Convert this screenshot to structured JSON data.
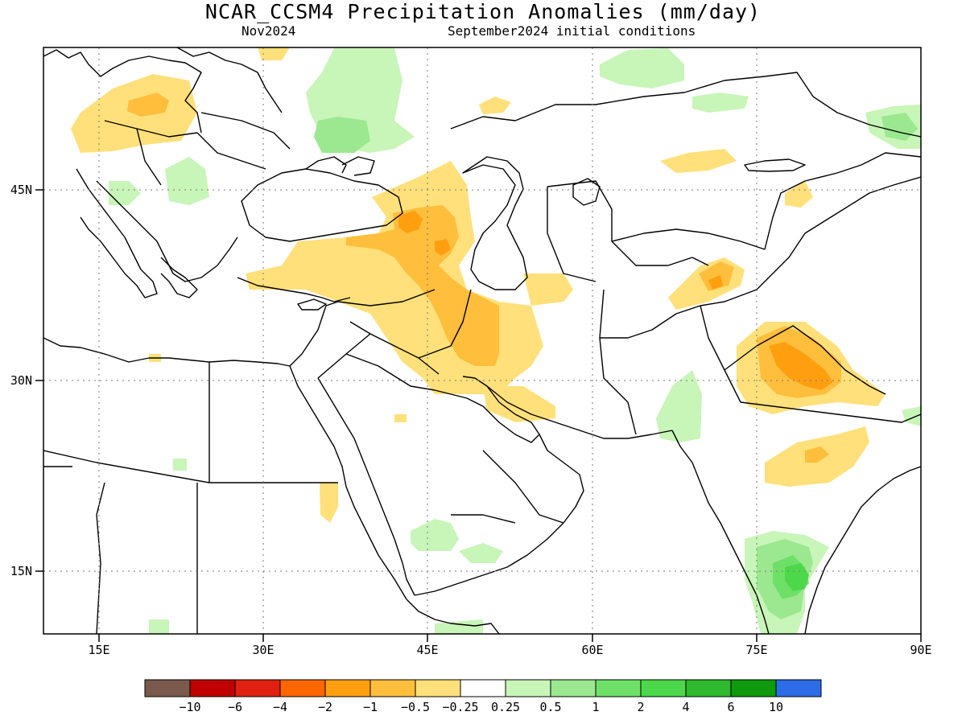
{
  "title": "NCAR_CCSM4 Precipitation Anomalies (mm/day)",
  "valid_month": "Nov2024",
  "initial_conditions": "September2024 initial conditions",
  "map_extent": {
    "lon": [
      10,
      90
    ],
    "lat": [
      10,
      55
    ]
  },
  "axes": {
    "lon_ticks": [
      {
        "value": 15,
        "label": "15E"
      },
      {
        "value": 30,
        "label": "30E"
      },
      {
        "value": 45,
        "label": "45E"
      },
      {
        "value": 60,
        "label": "60E"
      },
      {
        "value": 75,
        "label": "75E"
      },
      {
        "value": 90,
        "label": "90E"
      }
    ],
    "lat_ticks": [
      {
        "value": 15,
        "label": "15N"
      },
      {
        "value": 30,
        "label": "30N"
      },
      {
        "value": 45,
        "label": "45N"
      }
    ],
    "grid": "dotted"
  },
  "colorbar": {
    "colors": [
      "#7a5a4c",
      "#c00000",
      "#e02010",
      "#ff6600",
      "#ff9f10",
      "#ffbe3c",
      "#ffe07a",
      "#ffffff",
      "#c8f5b8",
      "#9be890",
      "#6ee068",
      "#4cd84a",
      "#2eb92e",
      "#0f9a0f",
      "#2c6ce6"
    ],
    "labels": [
      "−10",
      "−6",
      "−4",
      "−2",
      "−1",
      "−0.5",
      "−0.25",
      "0.25",
      "0.5",
      "1",
      "2",
      "4",
      "6",
      "10"
    ]
  }
}
